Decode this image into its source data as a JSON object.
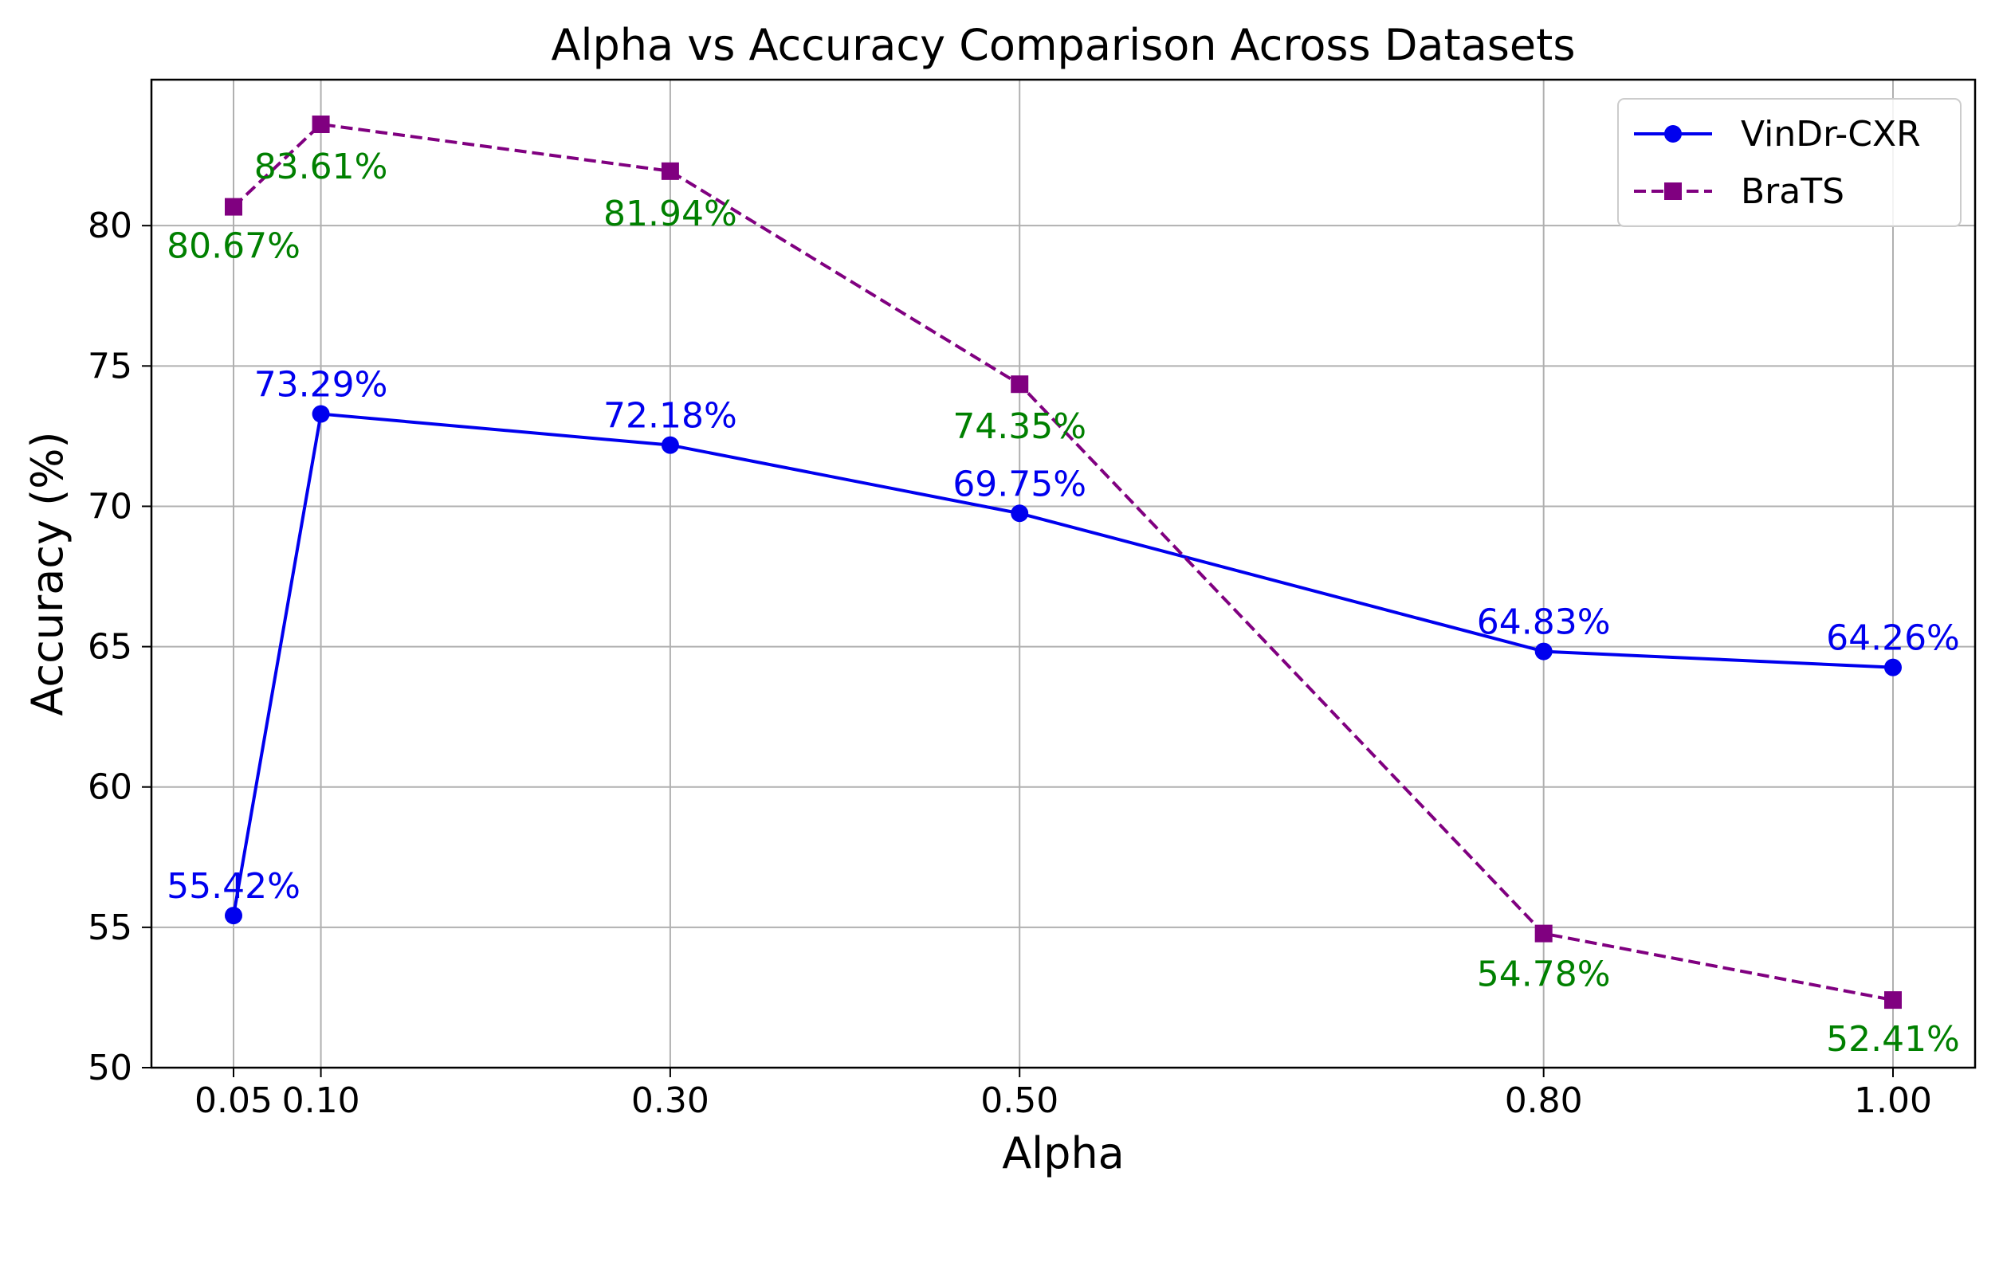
{
  "chart_data": {
    "type": "line",
    "title": "Alpha vs Accuracy Comparison Across Datasets",
    "xlabel": "Alpha",
    "ylabel": "Accuracy (%)",
    "x": [
      0.05,
      0.1,
      0.3,
      0.5,
      0.8,
      1.0
    ],
    "x_tick_labels": [
      "0.05",
      "0.10",
      "0.30",
      "0.50",
      "0.80",
      "1.00"
    ],
    "xlim": [
      0.003,
      1.047
    ],
    "ylim": [
      50,
      85.2
    ],
    "y_ticks": [
      50,
      55,
      60,
      65,
      70,
      75,
      80
    ],
    "y_tick_labels": [
      "50",
      "55",
      "60",
      "65",
      "70",
      "75",
      "80"
    ],
    "grid": true,
    "legend": "top-right",
    "series": [
      {
        "name": "VinDr-CXR",
        "values": [
          55.42,
          73.29,
          72.18,
          69.75,
          64.83,
          64.26
        ],
        "labels": [
          "55.42%",
          "73.29%",
          "72.18%",
          "69.75%",
          "64.83%",
          "64.26%"
        ],
        "color": "#0000ee",
        "label_color": "#0000ee",
        "line_style": "solid",
        "marker": "circle",
        "label_position": "above"
      },
      {
        "name": "BraTS",
        "values": [
          80.67,
          83.61,
          81.94,
          74.35,
          54.78,
          52.41
        ],
        "labels": [
          "80.67%",
          "83.61%",
          "81.94%",
          "74.35%",
          "54.78%",
          "52.41%"
        ],
        "color": "#800080",
        "label_color": "#008000",
        "line_style": "dashed",
        "marker": "square",
        "label_position": "mixed"
      }
    ]
  }
}
